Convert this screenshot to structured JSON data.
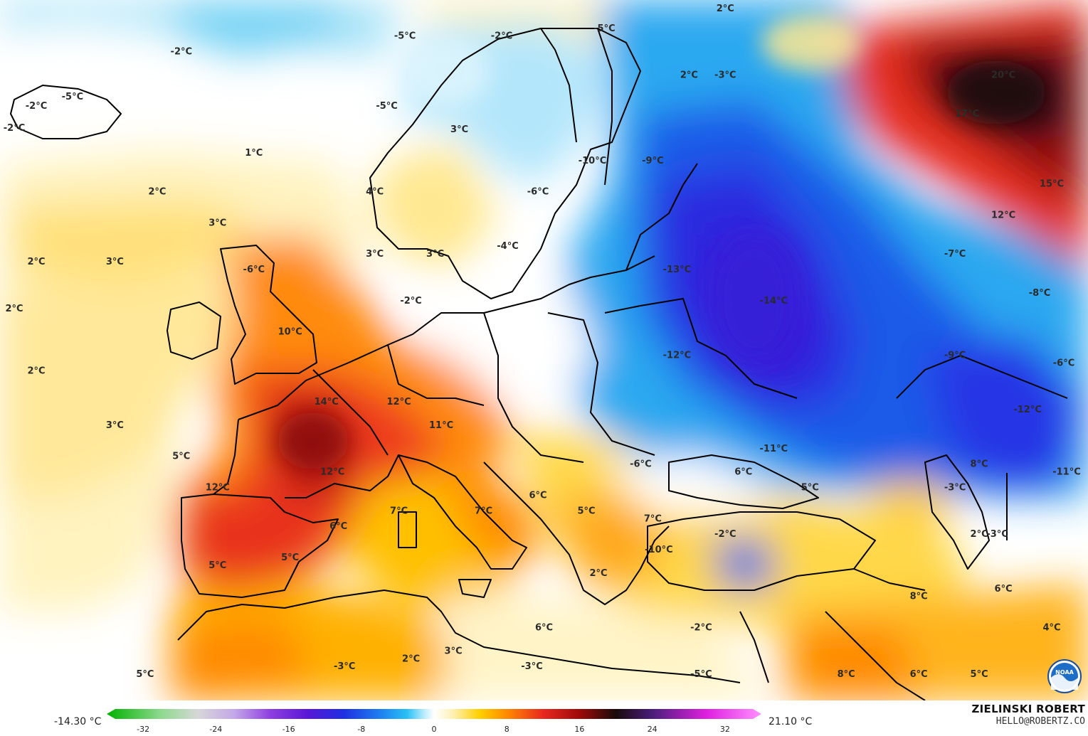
{
  "map": {
    "labels": [
      {
        "text": "-2°C",
        "lon": -22,
        "lat": 66
      },
      {
        "text": "-5°C",
        "lon": -19,
        "lat": 66.6
      },
      {
        "text": "-2°C",
        "lon": -24.5,
        "lat": 64.6
      },
      {
        "text": "1°C",
        "lon": -4,
        "lat": 63
      },
      {
        "text": "2°C",
        "lon": -12,
        "lat": 60.5
      },
      {
        "text": "3°C",
        "lon": -7,
        "lat": 58.5
      },
      {
        "text": "2°C",
        "lon": -22,
        "lat": 56
      },
      {
        "text": "3°C",
        "lon": -15.5,
        "lat": 56
      },
      {
        "text": "2°C",
        "lon": -24,
        "lat": 53
      },
      {
        "text": "2°C",
        "lon": -22,
        "lat": 49
      },
      {
        "text": "3°C",
        "lon": -15.5,
        "lat": 45.5
      },
      {
        "text": "-6°C",
        "lon": -4,
        "lat": 55.5
      },
      {
        "text": "10°C",
        "lon": -1,
        "lat": 51.5
      },
      {
        "text": "5°C",
        "lon": -10,
        "lat": 43.5
      },
      {
        "text": "14°C",
        "lon": 2,
        "lat": 47
      },
      {
        "text": "12°C",
        "lon": 8,
        "lat": 47
      },
      {
        "text": "11°C",
        "lon": 11.5,
        "lat": 45.5
      },
      {
        "text": "12°C",
        "lon": 2.5,
        "lat": 42.5
      },
      {
        "text": "12°C",
        "lon": -7,
        "lat": 41.5
      },
      {
        "text": "6°C",
        "lon": 3,
        "lat": 39
      },
      {
        "text": "7°C",
        "lon": 8,
        "lat": 40
      },
      {
        "text": "7°C",
        "lon": 15,
        "lat": 40
      },
      {
        "text": "6°C",
        "lon": 19.5,
        "lat": 41
      },
      {
        "text": "5°C",
        "lon": 23.5,
        "lat": 40
      },
      {
        "text": "2°C",
        "lon": 24.5,
        "lat": 36
      },
      {
        "text": "-2°C",
        "lon": -10,
        "lat": 69.5
      },
      {
        "text": "-5°C",
        "lon": 8.5,
        "lat": 70.5
      },
      {
        "text": "-2°C",
        "lon": 16.5,
        "lat": 70.5
      },
      {
        "text": "-5°C",
        "lon": 7,
        "lat": 66
      },
      {
        "text": "3°C",
        "lon": 13,
        "lat": 64.5
      },
      {
        "text": "4°C",
        "lon": 6,
        "lat": 60.5
      },
      {
        "text": "3°C",
        "lon": 6,
        "lat": 56.5
      },
      {
        "text": "3°C",
        "lon": 11,
        "lat": 56.5
      },
      {
        "text": "-2°C",
        "lon": 9,
        "lat": 53.5
      },
      {
        "text": "-4°C",
        "lon": 17,
        "lat": 57
      },
      {
        "text": "-6°C",
        "lon": 19.5,
        "lat": 60.5
      },
      {
        "text": "-10°C",
        "lon": 24,
        "lat": 62.5
      },
      {
        "text": "-9°C",
        "lon": 29,
        "lat": 62.5
      },
      {
        "text": "-5°C",
        "lon": 25,
        "lat": 71
      },
      {
        "text": "2°C",
        "lon": 32,
        "lat": 68
      },
      {
        "text": "-3°C",
        "lon": 35,
        "lat": 68
      },
      {
        "text": "2°C",
        "lon": 35,
        "lat": 73
      },
      {
        "text": "-13°C",
        "lon": 31,
        "lat": 55.5
      },
      {
        "text": "-14°C",
        "lon": 39,
        "lat": 53.5
      },
      {
        "text": "-12°C",
        "lon": 31,
        "lat": 50
      },
      {
        "text": "-6°C",
        "lon": 28,
        "lat": 43
      },
      {
        "text": "-11°C",
        "lon": 39,
        "lat": 44
      },
      {
        "text": "6°C",
        "lon": 36.5,
        "lat": 42.5
      },
      {
        "text": "5°C",
        "lon": 42,
        "lat": 41.5
      },
      {
        "text": "7°C",
        "lon": 29,
        "lat": 39.5
      },
      {
        "text": "-2°C",
        "lon": 35,
        "lat": 38.5
      },
      {
        "text": "-10°C",
        "lon": 29.5,
        "lat": 37.5
      },
      {
        "text": "-2°C",
        "lon": 33,
        "lat": 32.5
      },
      {
        "text": "6°C",
        "lon": 20,
        "lat": 32.5
      },
      {
        "text": "20°C",
        "lon": 58,
        "lat": 68
      },
      {
        "text": "17°C",
        "lon": 55,
        "lat": 65.5
      },
      {
        "text": "15°C",
        "lon": 62,
        "lat": 61
      },
      {
        "text": "12°C",
        "lon": 58,
        "lat": 59
      },
      {
        "text": "-7°C",
        "lon": 54,
        "lat": 56.5
      },
      {
        "text": "-8°C",
        "lon": 61,
        "lat": 54
      },
      {
        "text": "-9°C",
        "lon": 54,
        "lat": 50
      },
      {
        "text": "-6°C",
        "lon": 63,
        "lat": 49.5
      },
      {
        "text": "-12°C",
        "lon": 60,
        "lat": 46.5
      },
      {
        "text": "-11°C",
        "lon": 64,
        "lat": 42.5
      },
      {
        "text": "8°C",
        "lon": 56,
        "lat": 43
      },
      {
        "text": "-3°C",
        "lon": 54,
        "lat": 41.5
      },
      {
        "text": "2°C",
        "lon": 56,
        "lat": 38.5
      },
      {
        "text": "-3°C",
        "lon": 57.5,
        "lat": 38.5
      },
      {
        "text": "8°C",
        "lon": 51,
        "lat": 34.5
      },
      {
        "text": "6°C",
        "lon": 58,
        "lat": 35
      },
      {
        "text": "4°C",
        "lon": 62,
        "lat": 32.5
      },
      {
        "text": "5°C",
        "lon": -7,
        "lat": 36.5
      },
      {
        "text": "5°C",
        "lon": -1,
        "lat": 37
      },
      {
        "text": "-3°C",
        "lon": 3.5,
        "lat": 30
      },
      {
        "text": "3°C",
        "lon": 12.5,
        "lat": 31
      },
      {
        "text": "2°C",
        "lon": 9,
        "lat": 30.5
      },
      {
        "text": "-3°C",
        "lon": 19,
        "lat": 30
      },
      {
        "text": "-5°C",
        "lon": 33,
        "lat": 29.5
      },
      {
        "text": "8°C",
        "lon": 45,
        "lat": 29.5
      },
      {
        "text": "6°C",
        "lon": 51,
        "lat": 29.5
      },
      {
        "text": "5°C",
        "lon": 56,
        "lat": 29.5
      },
      {
        "text": "5°C",
        "lon": -13,
        "lat": 29.5
      }
    ]
  },
  "legend": {
    "min_label": "-14.30 °C",
    "max_label": "21.10 °C",
    "ticks": [
      "-32",
      "-24",
      "-16",
      "-8",
      "0",
      "8",
      "16",
      "24",
      "32"
    ],
    "tick_values": [
      -32,
      -24,
      -16,
      -8,
      0,
      8,
      16,
      24,
      32
    ],
    "range": [
      -36,
      36
    ],
    "stops": [
      {
        "v": -36,
        "color": "#00b200"
      },
      {
        "v": -30,
        "color": "#8fd98f"
      },
      {
        "v": -26,
        "color": "#d7d7d7"
      },
      {
        "v": -22,
        "color": "#c4a8e8"
      },
      {
        "v": -18,
        "color": "#8f3fe0"
      },
      {
        "v": -14,
        "color": "#5a17d6"
      },
      {
        "v": -10,
        "color": "#1f2fe0"
      },
      {
        "v": -6,
        "color": "#1f7ef0"
      },
      {
        "v": -3,
        "color": "#28c0f5"
      },
      {
        "v": -1,
        "color": "#bfeefc"
      },
      {
        "v": 0,
        "color": "#ffffff"
      },
      {
        "v": 2,
        "color": "#fff1b8"
      },
      {
        "v": 5,
        "color": "#ffd000"
      },
      {
        "v": 8,
        "color": "#ff8a00"
      },
      {
        "v": 12,
        "color": "#e8281e"
      },
      {
        "v": 16,
        "color": "#9e0a0a"
      },
      {
        "v": 20,
        "color": "#1a0a0a"
      },
      {
        "v": 24,
        "color": "#4a1d7a"
      },
      {
        "v": 30,
        "color": "#e020e0"
      },
      {
        "v": 36,
        "color": "#ff90ff"
      }
    ]
  },
  "brand": {
    "name": "ZIELINSKI ROBERT",
    "email": "HELLO@ROBERTZ.CO",
    "logo_text": "NOAA",
    "logo_icon": "noaa-logo-icon"
  },
  "colors": {
    "border": "#000000",
    "label": "#2b2b2b"
  }
}
